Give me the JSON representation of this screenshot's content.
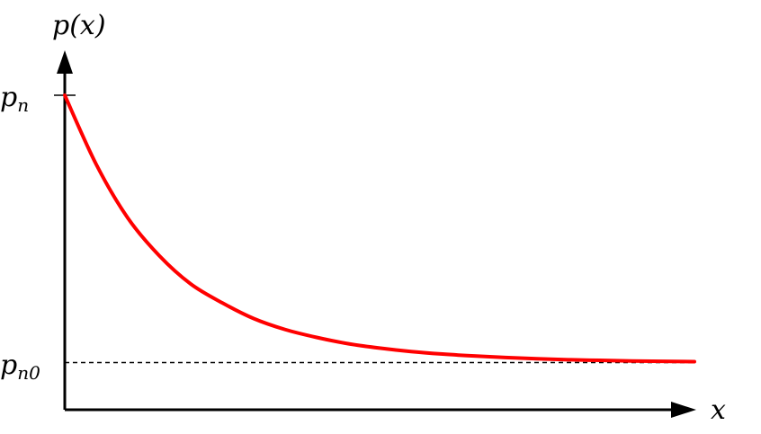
{
  "chart_data": {
    "type": "line",
    "title": "",
    "xlabel": "x",
    "ylabel": "p(x)",
    "y_tick_labels": [
      {
        "main": "p",
        "sub": "n",
        "value": 1
      },
      {
        "main": "p",
        "sub": "n0",
        "value": 0.15
      }
    ],
    "xlim": [
      0,
      10
    ],
    "ylim": [
      0,
      1.05
    ],
    "series": [
      {
        "color": "#ff0000",
        "x": [
          0,
          0.5,
          1,
          1.5,
          2,
          2.5,
          3,
          3.5,
          4,
          4.5,
          5,
          5.5,
          6,
          6.5,
          7,
          7.5,
          8,
          8.5,
          9,
          9.5,
          10
        ],
        "y": [
          1.0,
          0.78,
          0.61,
          0.49,
          0.4,
          0.34,
          0.29,
          0.255,
          0.23,
          0.21,
          0.196,
          0.185,
          0.177,
          0.171,
          0.166,
          0.162,
          0.159,
          0.157,
          0.155,
          0.154,
          0.153
        ]
      }
    ],
    "reference_lines": [
      {
        "y": 0.15,
        "style": "dashed",
        "color": "#000000"
      }
    ],
    "grid": false,
    "legend": "none"
  }
}
